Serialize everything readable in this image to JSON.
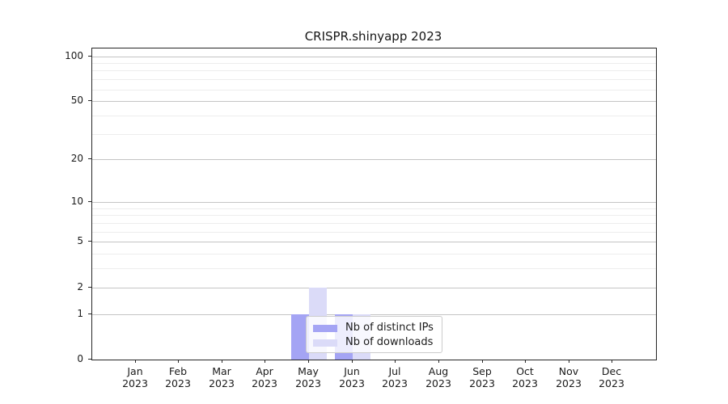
{
  "figure": {
    "background": "#ffffff",
    "axis_color": "#262626",
    "text_color": "#1a1a1a"
  },
  "chart_data": {
    "type": "bar",
    "title": "CRISPR.shinyapp 2023",
    "categories": [
      "Jan",
      "Feb",
      "Mar",
      "Apr",
      "May",
      "Jun",
      "Jul",
      "Aug",
      "Sep",
      "Oct",
      "Nov",
      "Dec"
    ],
    "category_year": "2023",
    "series": [
      {
        "name": "Nb of distinct IPs",
        "color": "#a4a4f4",
        "values": [
          0,
          0,
          0,
          0,
          1,
          1,
          0,
          0,
          0,
          0,
          0,
          0
        ]
      },
      {
        "name": "Nb of downloads",
        "color": "#dbdbf8",
        "values": [
          0,
          0,
          0,
          0,
          2,
          1,
          0,
          0,
          0,
          0,
          0,
          0
        ]
      }
    ],
    "xlabel": "",
    "ylabel": "",
    "yaxis": {
      "scale": "log1p",
      "ticks": [
        100,
        50,
        20,
        10,
        5,
        2,
        1,
        0
      ],
      "minor_ticks": [
        90,
        80,
        70,
        60,
        40,
        30,
        9,
        8,
        7,
        6,
        4,
        3
      ],
      "ylim": [
        0,
        113
      ]
    },
    "grid": {
      "orientation": "horizontal",
      "major_color": "#c4c4c4",
      "minor_color": "#ededed"
    },
    "legend_position": "inside-lower-center"
  }
}
